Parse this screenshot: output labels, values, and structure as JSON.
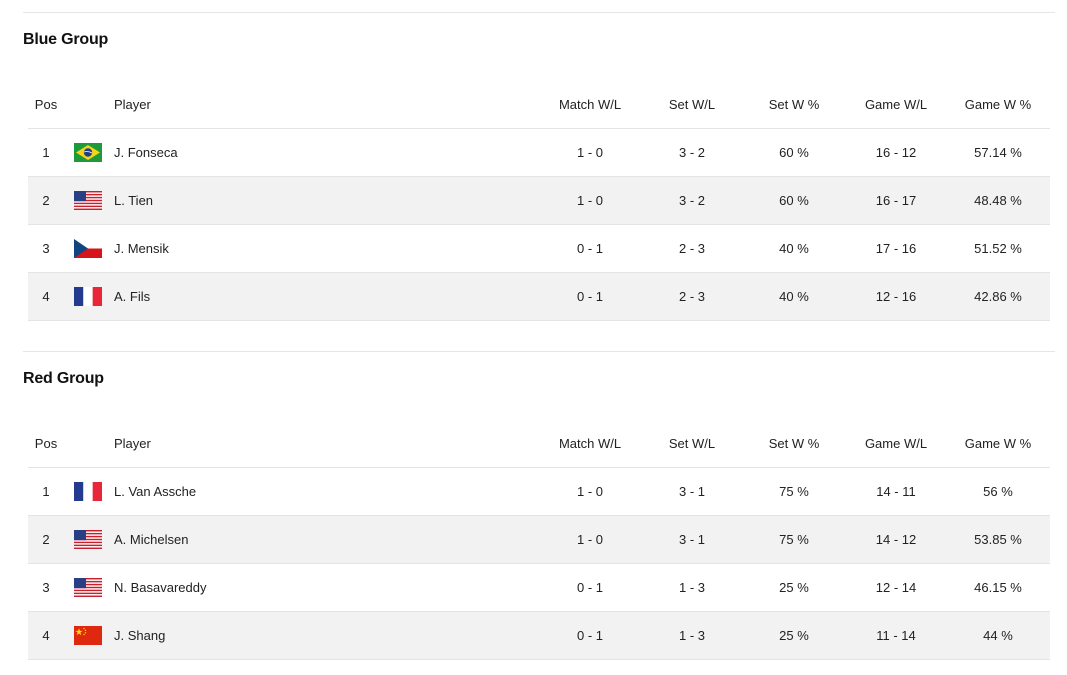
{
  "columns": {
    "pos": "Pos",
    "player": "Player",
    "match_wl": "Match W/L",
    "set_wl": "Set W/L",
    "set_w_pct": "Set W %",
    "game_wl": "Game W/L",
    "game_w_pct": "Game W %"
  },
  "groups": [
    {
      "title": "Blue Group",
      "rows": [
        {
          "pos": "1",
          "flag": "brazil-flag-icon",
          "player": "J. Fonseca",
          "match_wl": "1 - 0",
          "set_wl": "3 - 2",
          "set_w_pct": "60 %",
          "game_wl": "16 - 12",
          "game_w_pct": "57.14 %"
        },
        {
          "pos": "2",
          "flag": "usa-flag-icon",
          "player": "L. Tien",
          "match_wl": "1 - 0",
          "set_wl": "3 - 2",
          "set_w_pct": "60 %",
          "game_wl": "16 - 17",
          "game_w_pct": "48.48 %"
        },
        {
          "pos": "3",
          "flag": "czech-flag-icon",
          "player": "J. Mensik",
          "match_wl": "0 - 1",
          "set_wl": "2 - 3",
          "set_w_pct": "40 %",
          "game_wl": "17 - 16",
          "game_w_pct": "51.52 %"
        },
        {
          "pos": "4",
          "flag": "france-flag-icon",
          "player": "A. Fils",
          "match_wl": "0 - 1",
          "set_wl": "2 - 3",
          "set_w_pct": "40 %",
          "game_wl": "12 - 16",
          "game_w_pct": "42.86 %"
        }
      ]
    },
    {
      "title": "Red Group",
      "rows": [
        {
          "pos": "1",
          "flag": "france-flag-icon",
          "player": "L. Van Assche",
          "match_wl": "1 - 0",
          "set_wl": "3 - 1",
          "set_w_pct": "75 %",
          "game_wl": "14 - 11",
          "game_w_pct": "56 %"
        },
        {
          "pos": "2",
          "flag": "usa-flag-icon",
          "player": "A. Michelsen",
          "match_wl": "1 - 0",
          "set_wl": "3 - 1",
          "set_w_pct": "75 %",
          "game_wl": "14 - 12",
          "game_w_pct": "53.85 %"
        },
        {
          "pos": "3",
          "flag": "usa-flag-icon",
          "player": "N. Basavareddy",
          "match_wl": "0 - 1",
          "set_wl": "1 - 3",
          "set_w_pct": "25 %",
          "game_wl": "12 - 14",
          "game_w_pct": "46.15 %"
        },
        {
          "pos": "4",
          "flag": "china-flag-icon",
          "player": "J. Shang",
          "match_wl": "0 - 1",
          "set_wl": "1 - 3",
          "set_w_pct": "25 %",
          "game_wl": "11 - 14",
          "game_w_pct": "44 %"
        }
      ]
    }
  ]
}
